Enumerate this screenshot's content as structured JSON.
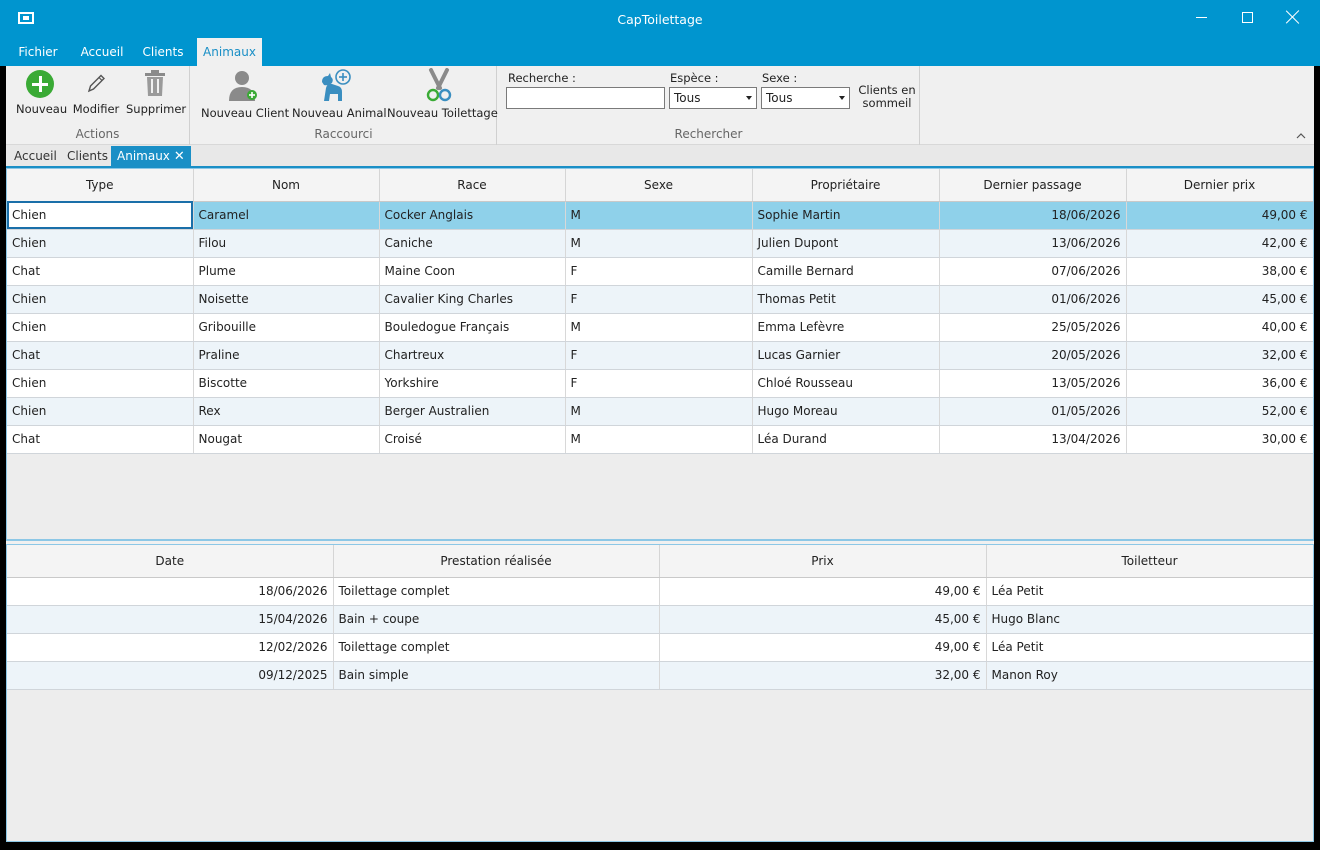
{
  "window": {
    "title": "CapToilettage"
  },
  "menu": {
    "tabs": [
      {
        "label": "Fichier"
      },
      {
        "label": "Accueil"
      },
      {
        "label": "Clients"
      },
      {
        "label": "Animaux"
      }
    ],
    "active": "Animaux"
  },
  "ribbon": {
    "actions": {
      "label": "Actions",
      "nouveau": "Nouveau",
      "modifier": "Modifier",
      "supprimer": "Supprimer"
    },
    "raccourci": {
      "label": "Raccourci",
      "nouveau_client": "Nouveau Client",
      "nouveau_animal": "Nouveau Animal",
      "nouveau_toilettage": "Nouveau Toilettage"
    },
    "rechercher": {
      "label": "Rechercher",
      "search_label": "Recherche :",
      "search_value": "",
      "espece_label": "Espèce :",
      "espece_value": "Tous",
      "sexe_label": "Sexe :",
      "sexe_value": "Tous",
      "clients_sommeil_line1": "Clients en",
      "clients_sommeil_line2": "sommeil"
    }
  },
  "doc_tabs": [
    {
      "label": "Accueil"
    },
    {
      "label": "Clients"
    },
    {
      "label": "Animaux"
    }
  ],
  "animals": {
    "columns": [
      "Type",
      "Nom",
      "Race",
      "Sexe",
      "Propriétaire",
      "Dernier passage",
      "Dernier prix"
    ],
    "rows": [
      [
        "Chien",
        "Caramel",
        "Cocker Anglais",
        "M",
        "Sophie Martin",
        "18/06/2026",
        "49,00 €"
      ],
      [
        "Chien",
        "Filou",
        "Caniche",
        "M",
        "Julien Dupont",
        "13/06/2026",
        "42,00 €"
      ],
      [
        "Chat",
        "Plume",
        "Maine Coon",
        "F",
        "Camille Bernard",
        "07/06/2026",
        "38,00 €"
      ],
      [
        "Chien",
        "Noisette",
        "Cavalier King Charles",
        "F",
        "Thomas Petit",
        "01/06/2026",
        "45,00 €"
      ],
      [
        "Chien",
        "Gribouille",
        "Bouledogue Français",
        "M",
        "Emma Lefèvre",
        "25/05/2026",
        "40,00 €"
      ],
      [
        "Chat",
        "Praline",
        "Chartreux",
        "F",
        "Lucas Garnier",
        "20/05/2026",
        "32,00 €"
      ],
      [
        "Chien",
        "Biscotte",
        "Yorkshire",
        "F",
        "Chloé Rousseau",
        "13/05/2026",
        "36,00 €"
      ],
      [
        "Chien",
        "Rex",
        "Berger Australien",
        "M",
        "Hugo Moreau",
        "01/05/2026",
        "52,00 €"
      ],
      [
        "Chat",
        "Nougat",
        "Croisé",
        "M",
        "Léa Durand",
        "13/04/2026",
        "30,00 €"
      ]
    ]
  },
  "history": {
    "columns": [
      "Date",
      "Prestation réalisée",
      "Prix",
      "Toiletteur"
    ],
    "rows": [
      [
        "18/06/2026",
        "Toilettage complet",
        "49,00 €",
        "Léa Petit"
      ],
      [
        "15/04/2026",
        "Bain + coupe",
        "45,00 €",
        "Hugo Blanc"
      ],
      [
        "12/02/2026",
        "Toilettage complet",
        "49,00 €",
        "Léa Petit"
      ],
      [
        "09/12/2025",
        "Bain simple",
        "32,00 €",
        "Manon Roy"
      ]
    ]
  },
  "colors": {
    "accent": "#0095CF",
    "selection": "#8FD1EA",
    "add_green": "#3AAA35"
  }
}
